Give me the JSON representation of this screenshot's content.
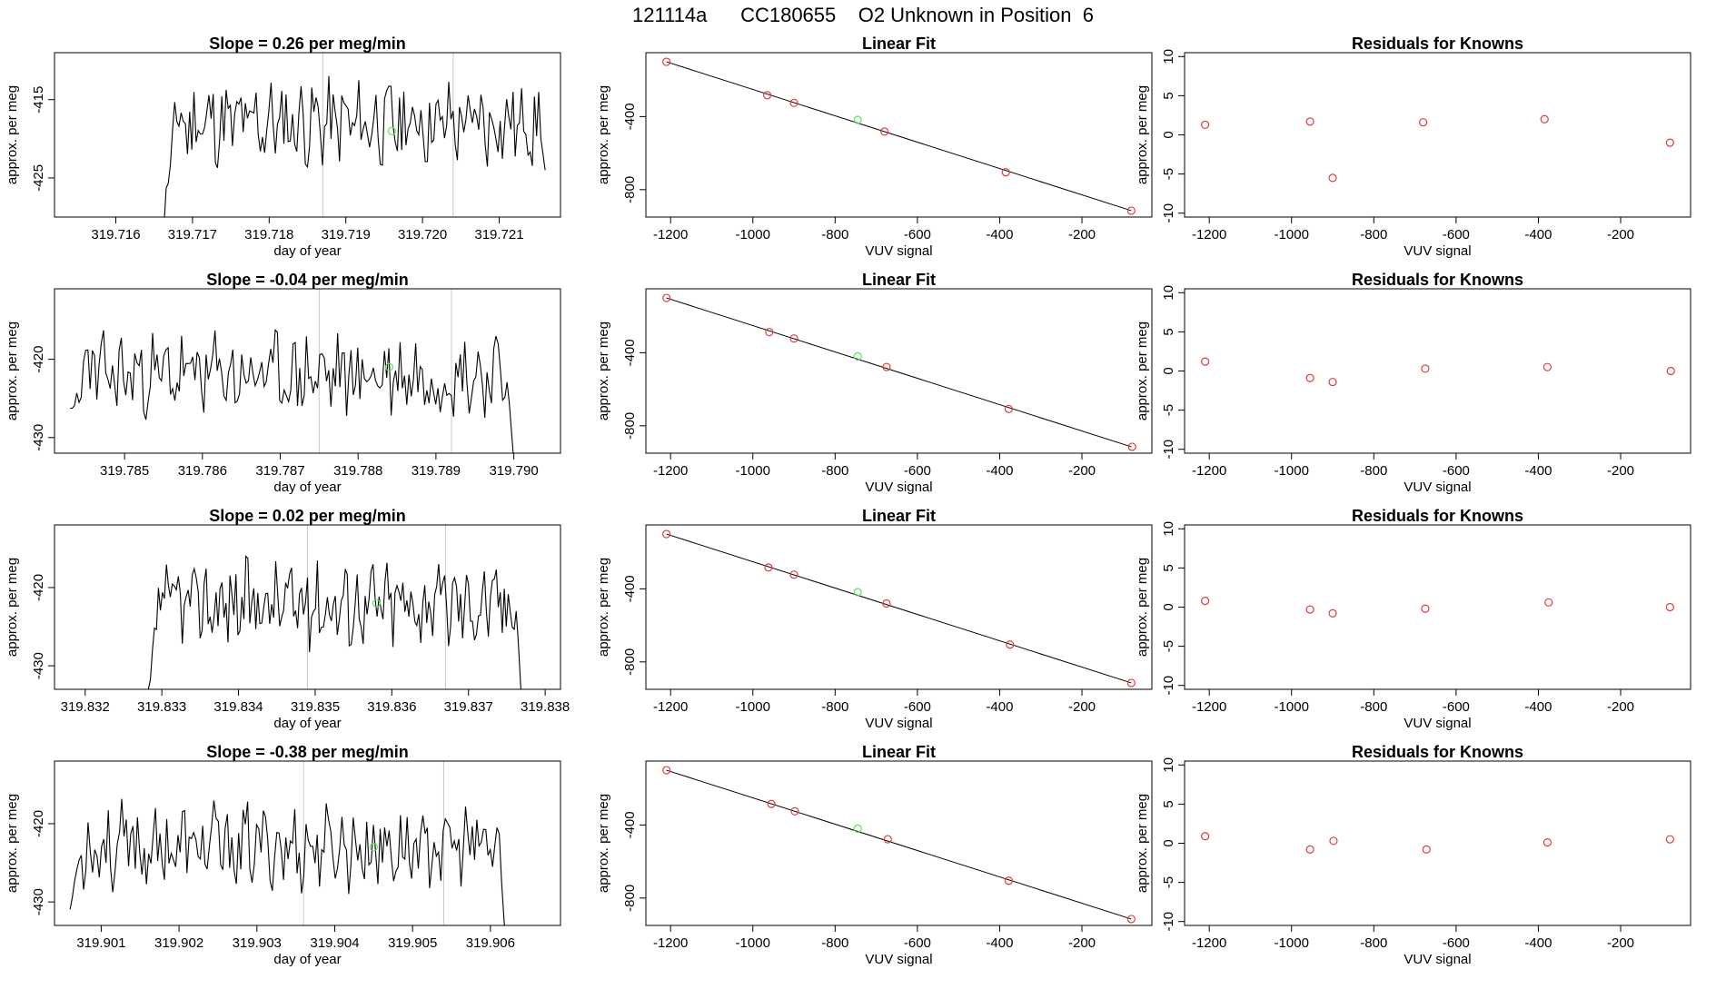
{
  "figure": {
    "title": "121114a      CC180655    O2 Unknown in Position  6",
    "colors": {
      "line": "#000000",
      "known_point": "#e03b3b",
      "unknown_point": "#5ee05e",
      "vline": "#c8c8c8",
      "axis": "#000000"
    }
  },
  "chart_data": [
    {
      "type": "line",
      "panel": "timeseries-1",
      "title": "Slope =  0.26  per meg/min",
      "xlabel": "day of year",
      "ylabel": "approx. per meg",
      "xlim": [
        319.7152,
        319.7218
      ],
      "ylim": [
        -430,
        -409
      ],
      "xticks": [
        319.716,
        319.717,
        319.718,
        319.719,
        319.72,
        319.721
      ],
      "xtick_labels": [
        "319.716",
        "319.717",
        "319.718",
        "319.719",
        "319.720",
        "319.721"
      ],
      "yticks": [
        -415,
        -425
      ],
      "vlines": [
        319.7187,
        319.7204
      ],
      "unknown_point": {
        "x": 319.7196,
        "y": -419
      },
      "series_x_range": [
        319.7166,
        319.7216
      ],
      "series_seed": 11,
      "series_points": 180,
      "series_level": -418,
      "series_start_drop": -432,
      "series_end_value": -424
    },
    {
      "type": "scatter",
      "panel": "linearfit-1",
      "title": "Linear Fit",
      "xlabel": "VUV signal",
      "ylabel": "approx. per meg",
      "xlim": [
        -1260,
        -30
      ],
      "ylim": [
        -950,
        -50
      ],
      "xticks": [
        -1200,
        -1000,
        -800,
        -600,
        -400,
        -200
      ],
      "yticks": [
        -400,
        -800
      ],
      "fit_line": {
        "x": [
          -1210,
          -80
        ],
        "y": [
          -100,
          -915
        ]
      },
      "known_points": {
        "x": [
          -1210,
          -965,
          -900,
          -680,
          -385,
          -80
        ],
        "y": [
          -100,
          -283,
          -325,
          -482,
          -705,
          -915
        ]
      },
      "unknown_point": {
        "x": -745,
        "y": -418
      }
    },
    {
      "type": "scatter",
      "panel": "residuals-1",
      "title": "Residuals for Knowns",
      "xlabel": "VUV signal",
      "ylabel": "approx. per meg",
      "xlim": [
        -1260,
        -30
      ],
      "ylim": [
        -10.5,
        10.5
      ],
      "xticks": [
        -1200,
        -1000,
        -800,
        -600,
        -400,
        -200
      ],
      "yticks": [
        10,
        5,
        0,
        -5,
        -10
      ],
      "known_points": {
        "x": [
          -1210,
          -955,
          -900,
          -680,
          -385,
          -80
        ],
        "y": [
          1.3,
          1.7,
          -5.5,
          1.6,
          2.0,
          -1.0
        ]
      }
    },
    {
      "type": "line",
      "panel": "timeseries-2",
      "title": "Slope =  -0.04  per meg/min",
      "xlabel": "day of year",
      "ylabel": "approx. per meg",
      "xlim": [
        319.7841,
        319.7906
      ],
      "ylim": [
        -432,
        -411
      ],
      "xticks": [
        319.785,
        319.786,
        319.787,
        319.788,
        319.789,
        319.79
      ],
      "xtick_labels": [
        "319.785",
        "319.786",
        "319.787",
        "319.788",
        "319.789",
        "319.790"
      ],
      "yticks": [
        -420,
        -430
      ],
      "vlines": [
        319.7875,
        319.7892
      ],
      "unknown_point": {
        "x": 319.7884,
        "y": -421
      },
      "series_x_range": [
        319.7843,
        319.79
      ],
      "series_seed": 23,
      "series_points": 200,
      "series_level": -422,
      "series_start_drop": -428,
      "series_end_value": -433
    },
    {
      "type": "scatter",
      "panel": "linearfit-2",
      "title": "Linear Fit",
      "xlabel": "VUV signal",
      "ylabel": "approx. per meg",
      "xlim": [
        -1260,
        -30
      ],
      "ylim": [
        -950,
        -50
      ],
      "xticks": [
        -1200,
        -1000,
        -800,
        -600,
        -400,
        -200
      ],
      "yticks": [
        -400,
        -800
      ],
      "fit_line": {
        "x": [
          -1210,
          -80
        ],
        "y": [
          -100,
          -915
        ]
      },
      "known_points": {
        "x": [
          -1210,
          -960,
          -900,
          -675,
          -378,
          -78
        ],
        "y": [
          -100,
          -287,
          -322,
          -478,
          -708,
          -915
        ]
      },
      "unknown_point": {
        "x": -745,
        "y": -420
      }
    },
    {
      "type": "scatter",
      "panel": "residuals-2",
      "title": "Residuals for Knowns",
      "xlabel": "VUV signal",
      "ylabel": "approx. per meg",
      "xlim": [
        -1260,
        -30
      ],
      "ylim": [
        -10.5,
        10.5
      ],
      "xticks": [
        -1200,
        -1000,
        -800,
        -600,
        -400,
        -200
      ],
      "yticks": [
        10,
        5,
        0,
        -5,
        -10
      ],
      "known_points": {
        "x": [
          -1210,
          -955,
          -900,
          -675,
          -378,
          -78
        ],
        "y": [
          1.2,
          -0.9,
          -1.4,
          0.3,
          0.5,
          0.0
        ]
      }
    },
    {
      "type": "line",
      "panel": "timeseries-3",
      "title": "Slope =  0.02  per meg/min",
      "xlabel": "day of year",
      "ylabel": "approx. per meg",
      "xlim": [
        319.8316,
        319.8382
      ],
      "ylim": [
        -433,
        -412
      ],
      "xticks": [
        319.832,
        319.833,
        319.834,
        319.835,
        319.836,
        319.837,
        319.838
      ],
      "xtick_labels": [
        "319.832",
        "319.833",
        "319.834",
        "319.835",
        "319.836",
        "319.837",
        "319.838"
      ],
      "yticks": [
        -420,
        -430
      ],
      "vlines": [
        319.8349,
        319.8367
      ],
      "unknown_point": {
        "x": 319.8358,
        "y": -422
      },
      "series_x_range": [
        319.8328,
        319.8377
      ],
      "series_seed": 37,
      "series_points": 190,
      "series_level": -422,
      "series_start_drop": -436,
      "series_end_value": -436
    },
    {
      "type": "scatter",
      "panel": "linearfit-3",
      "title": "Linear Fit",
      "xlabel": "VUV signal",
      "ylabel": "approx. per meg",
      "xlim": [
        -1260,
        -30
      ],
      "ylim": [
        -950,
        -50
      ],
      "xticks": [
        -1200,
        -1000,
        -800,
        -600,
        -400,
        -200
      ],
      "yticks": [
        -400,
        -800
      ],
      "fit_line": {
        "x": [
          -1210,
          -80
        ],
        "y": [
          -100,
          -915
        ]
      },
      "known_points": {
        "x": [
          -1210,
          -962,
          -900,
          -675,
          -375,
          -80
        ],
        "y": [
          -100,
          -283,
          -322,
          -480,
          -705,
          -915
        ]
      },
      "unknown_point": {
        "x": -745,
        "y": -418
      }
    },
    {
      "type": "scatter",
      "panel": "residuals-3",
      "title": "Residuals for Knowns",
      "xlabel": "VUV signal",
      "ylabel": "approx. per meg",
      "xlim": [
        -1260,
        -30
      ],
      "ylim": [
        -10.5,
        10.5
      ],
      "xticks": [
        -1200,
        -1000,
        -800,
        -600,
        -400,
        -200
      ],
      "yticks": [
        10,
        5,
        0,
        -5,
        -10
      ],
      "known_points": {
        "x": [
          -1210,
          -955,
          -900,
          -675,
          -375,
          -80
        ],
        "y": [
          0.8,
          -0.3,
          -0.8,
          -0.2,
          0.6,
          0.0
        ]
      }
    },
    {
      "type": "line",
      "panel": "timeseries-4",
      "title": "Slope =  -0.38  per meg/min",
      "xlabel": "day of year",
      "ylabel": "approx. per meg",
      "xlim": [
        319.9004,
        319.9069
      ],
      "ylim": [
        -433,
        -412
      ],
      "xticks": [
        319.901,
        319.902,
        319.903,
        319.904,
        319.905,
        319.906
      ],
      "xtick_labels": [
        "319.901",
        "319.902",
        "319.903",
        "319.904",
        "319.905",
        "319.906"
      ],
      "yticks": [
        -420,
        -430
      ],
      "vlines": [
        319.9036,
        319.9054
      ],
      "unknown_point": {
        "x": 319.9045,
        "y": -423
      },
      "series_x_range": [
        319.9006,
        319.9062
      ],
      "series_seed": 53,
      "series_points": 195,
      "series_level": -423,
      "series_start_drop": -429,
      "series_end_value": -436
    },
    {
      "type": "scatter",
      "panel": "linearfit-4",
      "title": "Linear Fit",
      "xlabel": "VUV signal",
      "ylabel": "approx. per meg",
      "xlim": [
        -1260,
        -30
      ],
      "ylim": [
        -950,
        -50
      ],
      "xticks": [
        -1200,
        -1000,
        -800,
        -600,
        -400,
        -200
      ],
      "yticks": [
        -400,
        -800
      ],
      "fit_line": {
        "x": [
          -1210,
          -80
        ],
        "y": [
          -100,
          -915
        ]
      },
      "known_points": {
        "x": [
          -1210,
          -955,
          -898,
          -672,
          -378,
          -80
        ],
        "y": [
          -100,
          -285,
          -325,
          -478,
          -705,
          -915
        ]
      },
      "unknown_point": {
        "x": -745,
        "y": -420
      }
    },
    {
      "type": "scatter",
      "panel": "residuals-4",
      "title": "Residuals for Knowns",
      "xlabel": "VUV signal",
      "ylabel": "approx. per meg",
      "xlim": [
        -1260,
        -30
      ],
      "ylim": [
        -10.5,
        10.5
      ],
      "xticks": [
        -1200,
        -1000,
        -800,
        -600,
        -400,
        -200
      ],
      "yticks": [
        10,
        5,
        0,
        -5,
        -10
      ],
      "known_points": {
        "x": [
          -1210,
          -955,
          -898,
          -672,
          -378,
          -80
        ],
        "y": [
          0.9,
          -0.8,
          0.3,
          -0.8,
          0.1,
          0.5
        ]
      }
    }
  ]
}
